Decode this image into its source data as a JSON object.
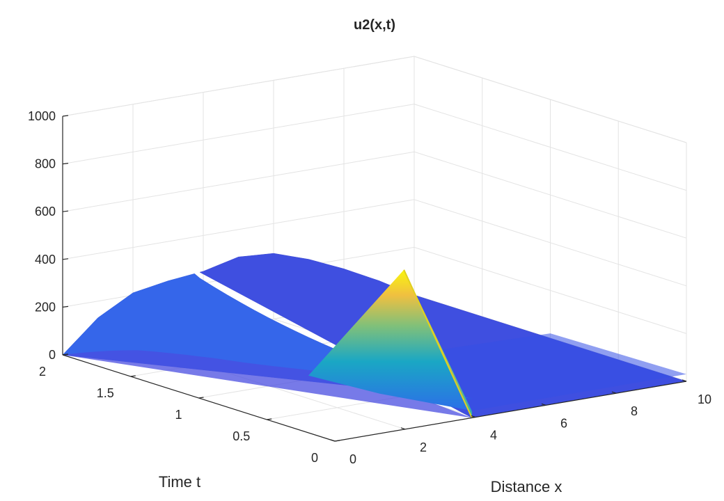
{
  "chart_data": {
    "type": "surface",
    "title": "u2(x,t)",
    "xlabel": "Distance x",
    "ylabel": "Time t",
    "zlabel": "",
    "xlim": [
      0,
      10
    ],
    "ylim": [
      0,
      2
    ],
    "zlim": [
      0,
      1000
    ],
    "x_ticks": [
      "0",
      "2",
      "4",
      "6",
      "8",
      "10"
    ],
    "y_ticks": [
      "0",
      "0.5",
      "1",
      "1.5",
      "2"
    ],
    "z_ticks": [
      "0",
      "200",
      "400",
      "600",
      "800",
      "1000"
    ],
    "grid": true,
    "colormap": "parula",
    "colormap_stops": [
      "#352a87",
      "#0f5cdd",
      "#1481d6",
      "#06a4ca",
      "#2eb7a4",
      "#87bf77",
      "#d1bb59",
      "#fec832",
      "#f9fb0e"
    ],
    "spike_position_x": 3.9,
    "spike_peak_u": 530,
    "edge_t0_u": [
      0,
      0,
      0,
      0,
      0,
      0,
      0,
      0,
      0,
      0,
      0
    ],
    "edge_t2_u": [
      0,
      130,
      210,
      235,
      250,
      285,
      275,
      225,
      160,
      85,
      0
    ]
  }
}
